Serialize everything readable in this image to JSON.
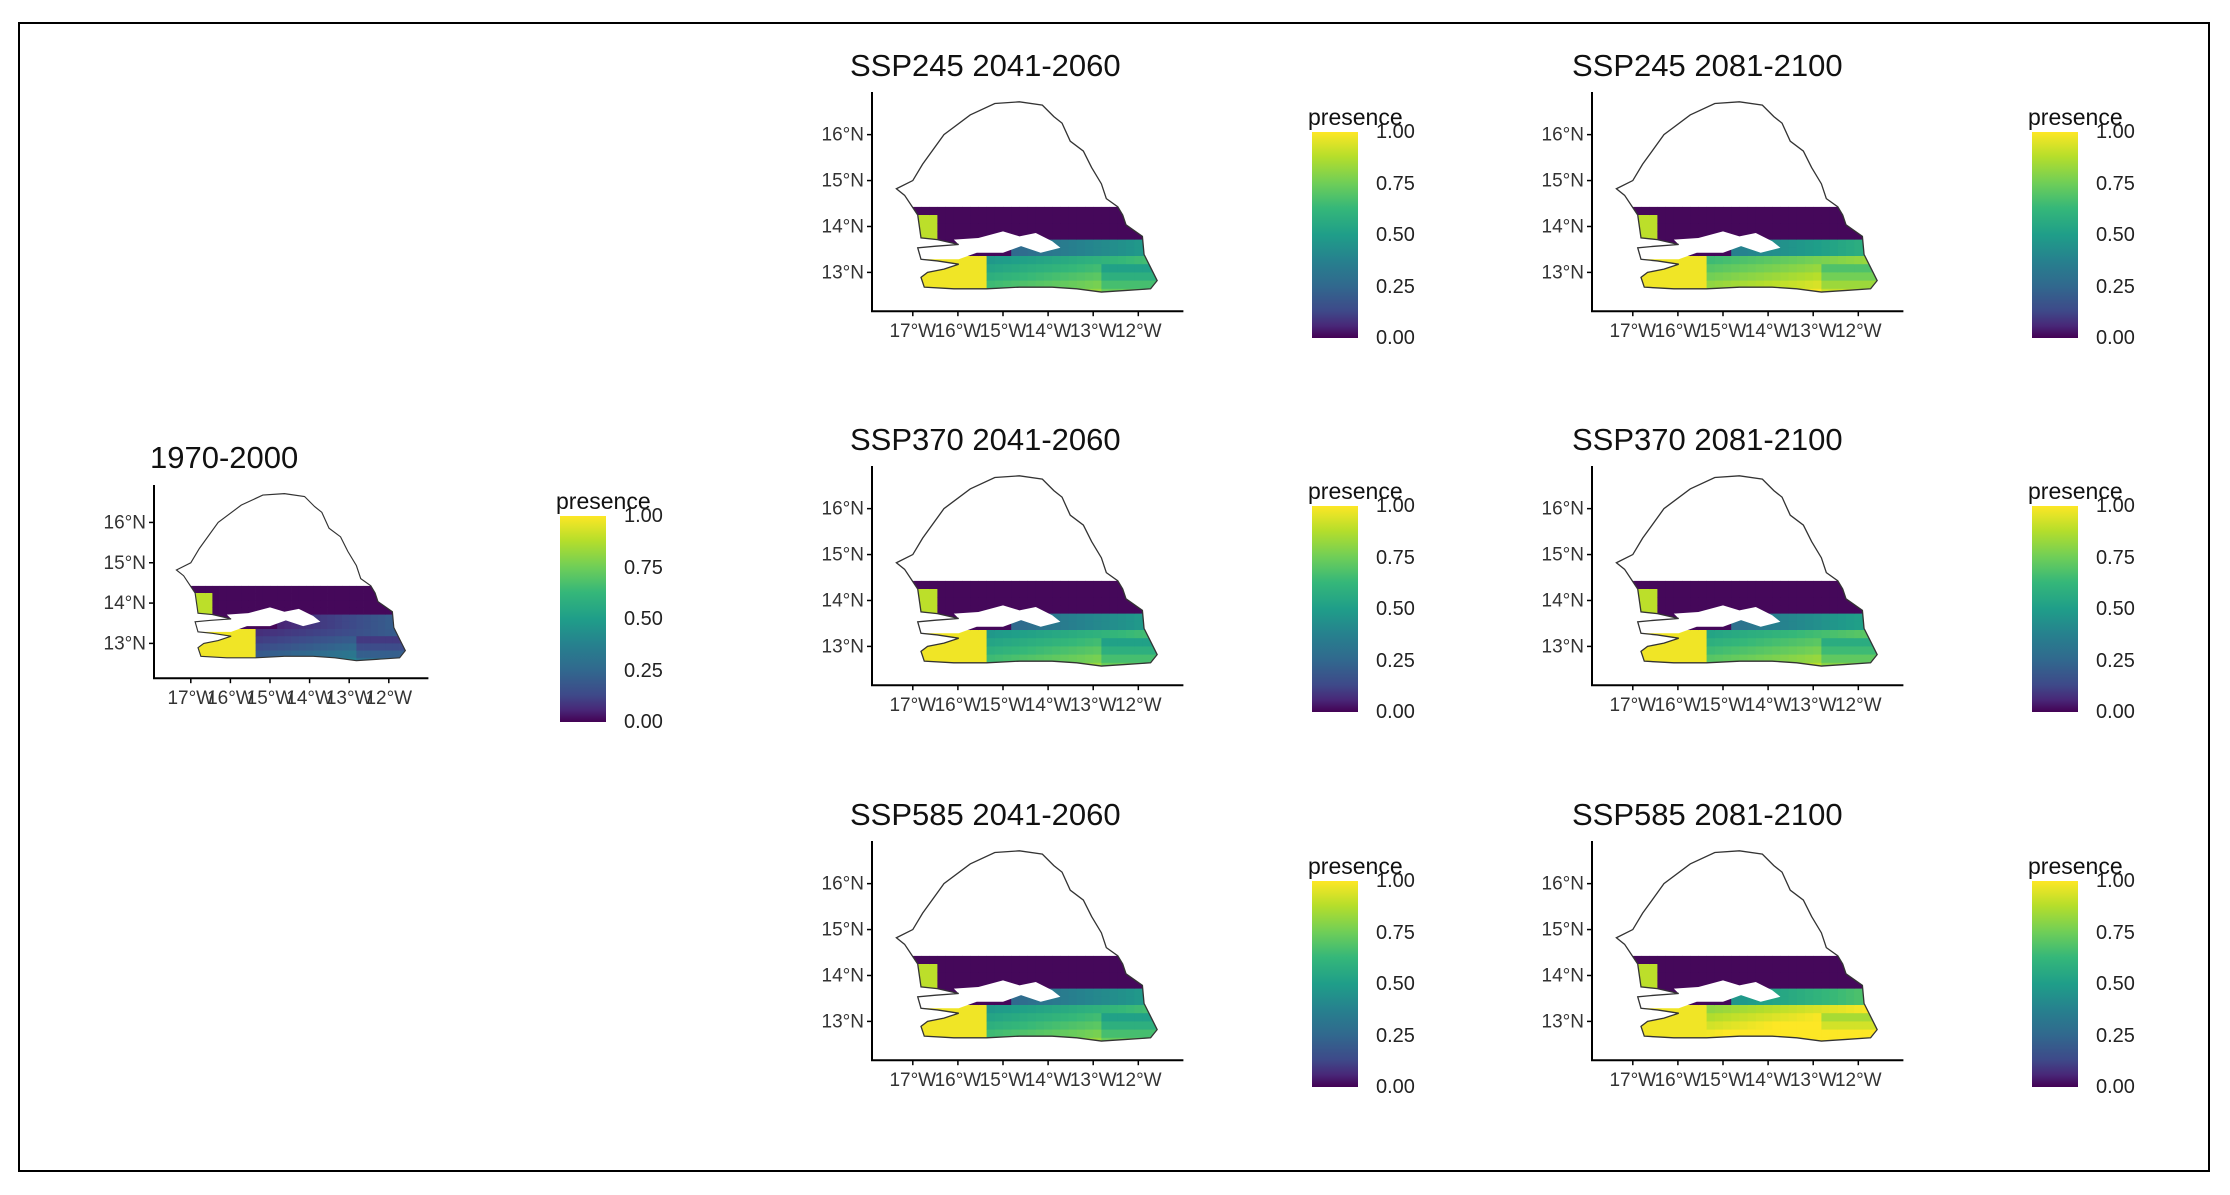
{
  "legend": {
    "title": "presence",
    "ticks": [
      "1.00",
      "0.75",
      "0.50",
      "0.25",
      "0.00"
    ]
  },
  "axes": {
    "lat_labels": [
      "16°N",
      "15°N",
      "14°N",
      "13°N"
    ],
    "lon_labels": [
      "17°W",
      "16°W",
      "15°W",
      "14°W",
      "13°W",
      "12°W"
    ],
    "lon_labels_compact": [
      "17°W",
      "16°W",
      "15°W",
      "14°W",
      "13°W",
      "12°W"
    ]
  },
  "colors": {
    "low": "#440154",
    "mid": "#21918c",
    "high": "#fde725",
    "outline": "#333333"
  },
  "panels": [
    {
      "id": "baseline",
      "title": "1970-2000",
      "south_presence": 0.15,
      "southeast_presence": 0.1
    },
    {
      "id": "ssp245-2041",
      "title": "SSP245 2041-2060",
      "south_presence": 0.55,
      "southeast_presence": 0.5
    },
    {
      "id": "ssp245-2081",
      "title": "SSP245 2081-2100",
      "south_presence": 0.7,
      "southeast_presence": 0.65
    },
    {
      "id": "ssp370-2041",
      "title": "SSP370 2041-2060",
      "south_presence": 0.55,
      "southeast_presence": 0.5
    },
    {
      "id": "ssp370-2081",
      "title": "SSP370 2081-2100",
      "south_presence": 0.6,
      "southeast_presence": 0.55
    },
    {
      "id": "ssp585-2041",
      "title": "SSP585 2041-2060",
      "south_presence": 0.55,
      "southeast_presence": 0.5
    },
    {
      "id": "ssp585-2081",
      "title": "SSP585 2081-2100",
      "south_presence": 0.85,
      "southeast_presence": 0.8
    }
  ]
}
